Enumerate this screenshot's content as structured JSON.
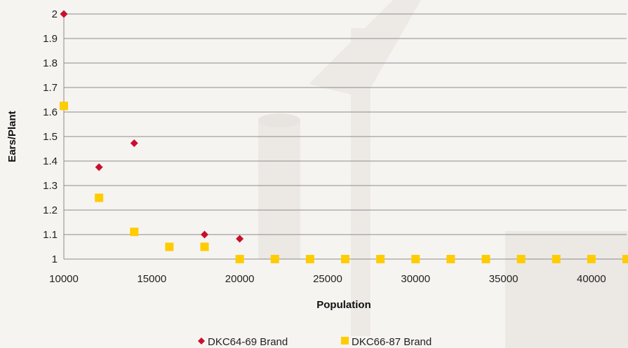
{
  "chart_data": {
    "type": "scatter",
    "xlabel": "Population",
    "ylabel": "Ears/Plant",
    "xlim": [
      10000,
      42000
    ],
    "ylim": [
      1,
      2
    ],
    "x_ticks": [
      10000,
      15000,
      20000,
      25000,
      30000,
      35000,
      40000
    ],
    "y_ticks": [
      1,
      1.1,
      1.2,
      1.3,
      1.4,
      1.5,
      1.6,
      1.7,
      1.8,
      1.9,
      2
    ],
    "grid": "horizontal",
    "legend_position": "bottom",
    "series": [
      {
        "name": "DKC64-69 Brand",
        "marker": "diamond",
        "color": "#c8102e",
        "points": [
          {
            "x": 10000,
            "y": 2.0
          },
          {
            "x": 12000,
            "y": 1.375
          },
          {
            "x": 14000,
            "y": 1.473
          },
          {
            "x": 18000,
            "y": 1.1
          },
          {
            "x": 20000,
            "y": 1.083
          }
        ]
      },
      {
        "name": "DKC66-87 Brand",
        "marker": "square",
        "color": "#ffcc00",
        "points": [
          {
            "x": 10000,
            "y": 1.625
          },
          {
            "x": 12000,
            "y": 1.25
          },
          {
            "x": 14000,
            "y": 1.111
          },
          {
            "x": 16000,
            "y": 1.05
          },
          {
            "x": 18000,
            "y": 1.05
          },
          {
            "x": 20000,
            "y": 1.0
          },
          {
            "x": 22000,
            "y": 1.0
          },
          {
            "x": 24000,
            "y": 1.0
          },
          {
            "x": 26000,
            "y": 1.0
          },
          {
            "x": 28000,
            "y": 1.0
          },
          {
            "x": 30000,
            "y": 1.0
          },
          {
            "x": 32000,
            "y": 1.0
          },
          {
            "x": 34000,
            "y": 1.0
          },
          {
            "x": 36000,
            "y": 1.0
          },
          {
            "x": 38000,
            "y": 1.0
          },
          {
            "x": 40000,
            "y": 1.0
          },
          {
            "x": 42000,
            "y": 1.0
          }
        ]
      }
    ]
  }
}
